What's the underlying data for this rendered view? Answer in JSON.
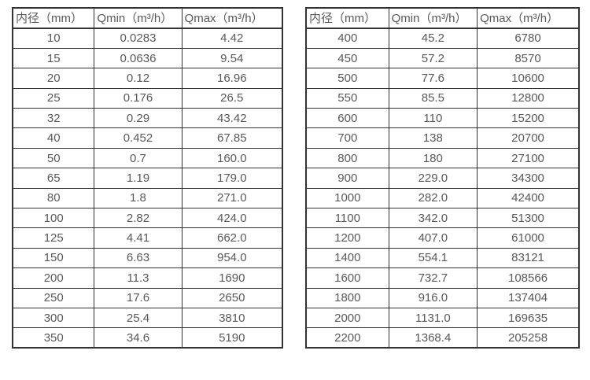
{
  "colors": {
    "border": "#333333",
    "text": "#595959",
    "background": "#ffffff"
  },
  "chart_data": [
    {
      "type": "table",
      "title": "",
      "headers": [
        "内径（mm）",
        "Qmin（m³/h）",
        "Qmax（m³/h）"
      ],
      "rows": [
        [
          "10",
          "0.0283",
          "4.42"
        ],
        [
          "15",
          "0.0636",
          "9.54"
        ],
        [
          "20",
          "0.12",
          "16.96"
        ],
        [
          "25",
          "0.176",
          "26.5"
        ],
        [
          "32",
          "0.29",
          "43.42"
        ],
        [
          "40",
          "0.452",
          "67.85"
        ],
        [
          "50",
          "0.7",
          "160.0"
        ],
        [
          "65",
          "1.19",
          "179.0"
        ],
        [
          "80",
          "1.8",
          "271.0"
        ],
        [
          "100",
          "2.82",
          "424.0"
        ],
        [
          "125",
          "4.41",
          "662.0"
        ],
        [
          "150",
          "6.63",
          "954.0"
        ],
        [
          "200",
          "11.3",
          "1690"
        ],
        [
          "250",
          "17.6",
          "2650"
        ],
        [
          "300",
          "25.4",
          "3810"
        ],
        [
          "350",
          "34.6",
          "5190"
        ]
      ]
    },
    {
      "type": "table",
      "title": "",
      "headers": [
        "内径（mm）",
        "Qmin（m³/h）",
        "Qmax（m³/h）"
      ],
      "rows": [
        [
          "400",
          "45.2",
          "6780"
        ],
        [
          "450",
          "57.2",
          "8570"
        ],
        [
          "500",
          "77.6",
          "10600"
        ],
        [
          "550",
          "85.5",
          "12800"
        ],
        [
          "600",
          "110",
          "15200"
        ],
        [
          "700",
          "138",
          "20700"
        ],
        [
          "800",
          "180",
          "27100"
        ],
        [
          "900",
          "229.0",
          "34300"
        ],
        [
          "1000",
          "282.0",
          "42400"
        ],
        [
          "1100",
          "342.0",
          "51300"
        ],
        [
          "1200",
          "407.0",
          "61000"
        ],
        [
          "1400",
          "554.1",
          "83121"
        ],
        [
          "1600",
          "732.7",
          "108566"
        ],
        [
          "1800",
          "916.0",
          "137404"
        ],
        [
          "2000",
          "1131.0",
          "169635"
        ],
        [
          "2200",
          "1368.4",
          "205258"
        ]
      ]
    }
  ]
}
